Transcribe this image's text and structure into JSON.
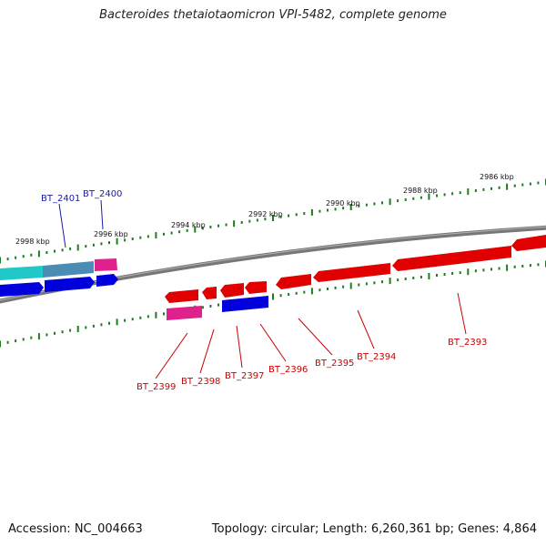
{
  "title": "Bacteroides thetaiotaomicron VPI-5482, complete genome",
  "footer": {
    "accession": "Accession: NC_004663",
    "topology": "Topology: circular; Length: 6,260,361 bp; Genes: 4,864"
  },
  "colors": {
    "backbone": "#777777",
    "ticks": "#1e7d1e",
    "reverse_strand": "#e00000",
    "forward_strand": "#0000dd",
    "pink_feature": "#e0208c",
    "teal_feature": "#20c8c8",
    "label_blue": "#1a1aaa",
    "label_red": "#cc0000"
  },
  "scale_labels": [
    {
      "text": "2998 kbp"
    },
    {
      "text": "2996 kbp"
    },
    {
      "text": "2994 kbp"
    },
    {
      "text": "2992 kbp"
    },
    {
      "text": "2990 kbp"
    },
    {
      "text": "2988 kbp"
    },
    {
      "text": "2986 kbp"
    }
  ],
  "gene_labels": [
    {
      "text": "BT_2401",
      "strand": "forward"
    },
    {
      "text": "BT_2400",
      "strand": "forward"
    },
    {
      "text": "BT_2399",
      "strand": "reverse"
    },
    {
      "text": "BT_2398",
      "strand": "reverse"
    },
    {
      "text": "BT_2397",
      "strand": "reverse"
    },
    {
      "text": "BT_2396",
      "strand": "reverse"
    },
    {
      "text": "BT_2395",
      "strand": "reverse"
    },
    {
      "text": "BT_2394",
      "strand": "reverse"
    },
    {
      "text": "BT_2393",
      "strand": "reverse"
    }
  ]
}
